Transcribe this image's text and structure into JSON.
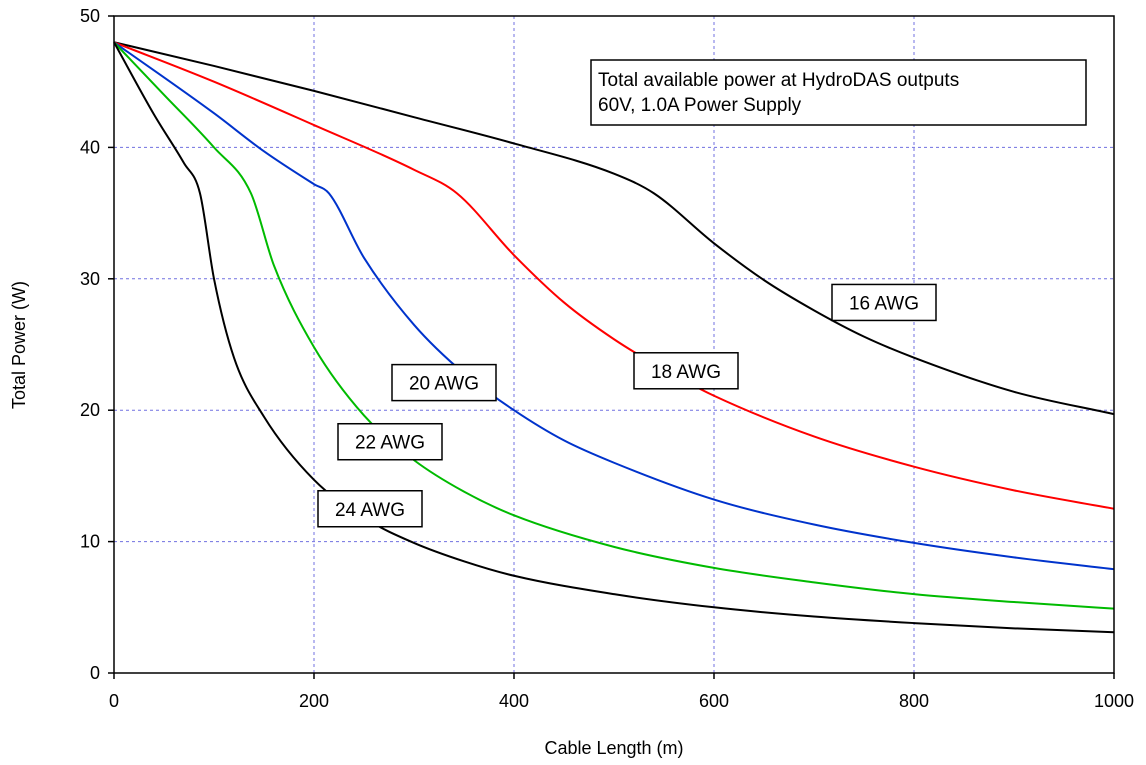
{
  "chart_data": {
    "type": "line",
    "title": "",
    "xlabel": "Cable Length (m)",
    "ylabel": "Total Power (W)",
    "xlim": [
      0,
      1000
    ],
    "ylim": [
      0,
      50
    ],
    "xticks": [
      0,
      200,
      400,
      600,
      800,
      1000
    ],
    "yticks": [
      0,
      10,
      20,
      30,
      40,
      50
    ],
    "grid": true,
    "annotation": {
      "lines": [
        "Total available power at HydroDAS outputs",
        "60V, 1.0A Power Supply"
      ],
      "placement": "top-right"
    },
    "series": [
      {
        "name": "16 AWG",
        "color": "#000000",
        "x": [
          0,
          100,
          200,
          300,
          400,
          500,
          540,
          600,
          650,
          700,
          750,
          800,
          900,
          1000
        ],
        "y": [
          48,
          46.2,
          44.3,
          42.3,
          40.3,
          38.0,
          36.5,
          32.7,
          29.9,
          27.6,
          25.6,
          24.0,
          21.4,
          19.7
        ]
      },
      {
        "name": "18 AWG",
        "color": "#ff0000",
        "x": [
          0,
          100,
          200,
          300,
          343,
          400,
          450,
          500,
          550,
          600,
          700,
          800,
          900,
          1000
        ],
        "y": [
          48,
          45.0,
          41.7,
          38.3,
          36.5,
          31.8,
          28.2,
          25.4,
          23.1,
          21.1,
          18.0,
          15.7,
          13.9,
          12.5
        ]
      },
      {
        "name": "20 AWG",
        "color": "#0033cc",
        "x": [
          0,
          100,
          150,
          200,
          215,
          250,
          300,
          350,
          400,
          450,
          500,
          600,
          700,
          800,
          900,
          1000
        ],
        "y": [
          48,
          42.6,
          39.7,
          37.2,
          36.5,
          31.6,
          26.5,
          22.8,
          20.0,
          17.7,
          16.0,
          13.2,
          11.3,
          9.9,
          8.8,
          7.9
        ]
      },
      {
        "name": "22 AWG",
        "color": "#00bb00",
        "x": [
          0,
          50,
          100,
          137,
          160,
          200,
          250,
          300,
          350,
          400,
          500,
          600,
          700,
          800,
          900,
          1000
        ],
        "y": [
          48,
          44.0,
          40.0,
          36.5,
          31.0,
          24.8,
          19.6,
          16.2,
          13.8,
          12.0,
          9.6,
          8.0,
          6.9,
          6.0,
          5.4,
          4.9
        ]
      },
      {
        "name": "24 AWG",
        "color": "#000000",
        "x": [
          0,
          40,
          70,
          86,
          100,
          120,
          150,
          200,
          250,
          300,
          350,
          400,
          500,
          600,
          700,
          800,
          900,
          1000
        ],
        "y": [
          48,
          42.5,
          38.8,
          36.5,
          30.0,
          24.0,
          19.5,
          14.7,
          11.8,
          9.9,
          8.5,
          7.4,
          6.0,
          5.0,
          4.3,
          3.8,
          3.4,
          3.1
        ]
      }
    ],
    "series_labels": [
      {
        "text": "16 AWG",
        "x": 770,
        "y": 28.2
      },
      {
        "text": "18 AWG",
        "x": 572,
        "y": 23.0
      },
      {
        "text": "20 AWG",
        "x": 330,
        "y": 22.1
      },
      {
        "text": "22 AWG",
        "x": 276,
        "y": 17.6
      },
      {
        "text": "24 AWG",
        "x": 256,
        "y": 12.5
      }
    ]
  }
}
